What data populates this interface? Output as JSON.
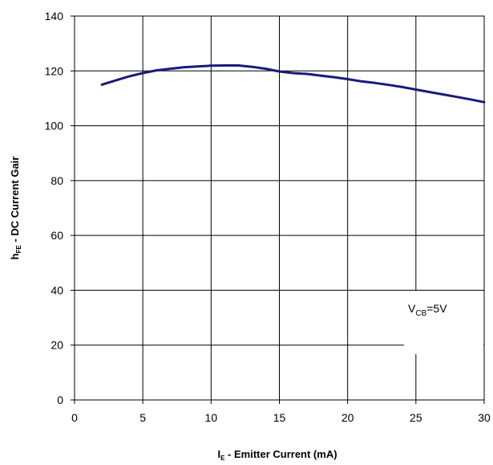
{
  "chart_data": {
    "type": "line",
    "xlabel": {
      "main": "I",
      "sub": "E",
      "rest": " - Emitter Current (mA)"
    },
    "ylabel": {
      "main": "h",
      "sub": "FE",
      "rest": " - DC Current Gair"
    },
    "xlim": [
      0,
      30
    ],
    "ylim": [
      0,
      140
    ],
    "x_ticks": [
      "0",
      "5",
      "10",
      "15",
      "20",
      "25",
      "30"
    ],
    "y_ticks": [
      "0",
      "20",
      "40",
      "60",
      "80",
      "100",
      "120",
      "140"
    ],
    "grid": true,
    "annotation": {
      "main": "V",
      "sub": "CB",
      "rest": "=5V"
    },
    "line_color": "#1a1a7a",
    "series": [
      {
        "x": [
          2,
          3,
          4,
          5,
          6,
          7,
          8,
          9,
          10,
          11,
          12,
          13,
          14,
          15,
          16,
          17,
          18,
          19,
          20,
          21,
          22,
          23,
          24,
          25,
          26,
          27,
          28,
          29,
          30
        ],
        "y": [
          115,
          116.5,
          118,
          119.2,
          120.2,
          120.8,
          121.3,
          121.6,
          121.9,
          122,
          122,
          121.5,
          120.8,
          119.8,
          119.2,
          118.9,
          118.3,
          117.7,
          117,
          116.2,
          115.6,
          114.9,
          114.1,
          113.2,
          112.3,
          111.4,
          110.5,
          109.6,
          108.6
        ]
      }
    ]
  }
}
